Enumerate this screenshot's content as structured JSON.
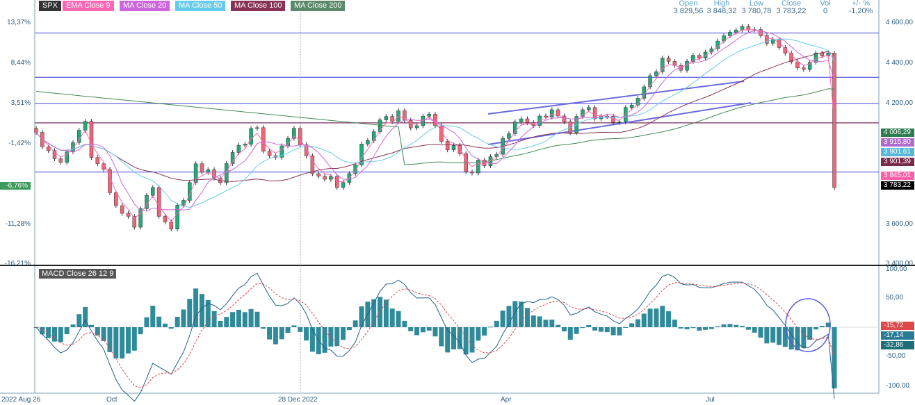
{
  "legend": {
    "symbol": "SPX",
    "items": [
      {
        "label": "EMA Close 9",
        "color": "#ff66b3"
      },
      {
        "label": "MA Close 20",
        "color": "#cc66dd"
      },
      {
        "label": "MA Close 50",
        "color": "#66ccee"
      },
      {
        "label": "MA Close 100",
        "color": "#883355"
      },
      {
        "label": "MA Close 200",
        "color": "#448855"
      }
    ]
  },
  "quote": {
    "open_label": "Open",
    "open": "3 829,56",
    "high_label": "High",
    "high": "3 848,32",
    "low_label": "Low",
    "low": "3 780,78",
    "close_label": "Close",
    "close": "3 783,22",
    "vol_label": "Vol",
    "vol": "0",
    "chg_label": "+/- %",
    "chg": "-1,20%"
  },
  "pct_labels": [
    "13,37%",
    "8,44%",
    "3,51%",
    "-1,42%",
    "-6,76%",
    "-11,28%",
    "-16,21%"
  ],
  "price_labels": [
    "4 600,00",
    "4 400,00",
    "4 200,00",
    "3 600,00",
    "3 400,00"
  ],
  "price_tags": [
    {
      "text": "4 006,29",
      "color": "#2e7d4f"
    },
    {
      "text": "3 915,80",
      "color": "#b06ad0"
    },
    {
      "text": "3 901,61",
      "color": "#56b8d8"
    },
    {
      "text": "3 901,39",
      "color": "#7a2a4a"
    },
    {
      "text": "3 845,01",
      "color": "#ff5fa8"
    },
    {
      "text": "3 783,22",
      "color": "#000000"
    }
  ],
  "macd": {
    "label": "MACD Close 26 12 9",
    "axis_labels": [
      "100,00",
      "50,00",
      "-50,00",
      "-100,00"
    ],
    "tags": [
      {
        "text": "-15,72",
        "color": "#e04848"
      },
      {
        "text": "-17,14",
        "color": "#2a7a96"
      },
      {
        "text": "-32,86",
        "color": "#1e6f7a"
      }
    ]
  },
  "x_labels": [
    "2022 Aug 26",
    "Oct",
    "28 Dec 2022",
    "Apr",
    "Jul"
  ],
  "chart_data": {
    "type": "candlestick",
    "x_range": [
      "2022-08-26",
      "2023-08-04"
    ],
    "y_range": [
      3400,
      4600
    ],
    "last": {
      "open": 3829.56,
      "high": 3848.32,
      "low": 3780.78,
      "close": 3783.22
    },
    "close_series": [
      4057,
      3985,
      3966,
      3926,
      3908,
      3960,
      4006,
      4067,
      4111,
      3932,
      3901,
      3873,
      3757,
      3693,
      3655,
      3640,
      3586,
      3678,
      3744,
      3783,
      3640,
      3612,
      3577,
      3695,
      3719,
      3808,
      3901,
      3859,
      3871,
      3830,
      3807,
      3902,
      3957,
      3993,
      3998,
      4076,
      4080,
      3963,
      3941,
      3933,
      3990,
      4027,
      4077,
      3996,
      3940,
      3852,
      3839,
      3824,
      3839,
      3783,
      3808,
      3852,
      3895,
      3999,
      4016,
      4060,
      4119,
      4136,
      4111,
      4164,
      4117,
      4079,
      4090,
      4137,
      4147,
      4090,
      4012,
      3970,
      3992,
      3951,
      3861,
      3855,
      3919,
      3891,
      3936,
      3948,
      4027,
      4050,
      4109,
      4124,
      4105,
      4091,
      4138,
      4133,
      4169,
      4138,
      4109,
      4055,
      4136,
      4169,
      4180,
      4124,
      4136,
      4137,
      4106,
      4109,
      4180,
      4192,
      4226,
      4283,
      4338,
      4358,
      4425,
      4409,
      4389,
      4365,
      4409,
      4439,
      4425,
      4455,
      4472,
      4510,
      4536,
      4554,
      4565,
      4582,
      4566,
      4567,
      4537,
      4499,
      4518,
      4478,
      4450,
      4407,
      4377,
      4369,
      4405,
      4451,
      4436,
      4450,
      3783
    ],
    "series": [
      {
        "name": "EMA Close 9",
        "last": 3845.01
      },
      {
        "name": "MA Close 20",
        "last": 3915.8
      },
      {
        "name": "MA Close 50",
        "last": 3901.61
      },
      {
        "name": "MA Close 100",
        "last": 3901.39
      },
      {
        "name": "MA Close 200",
        "last": 4006.29
      }
    ],
    "macd_last": {
      "signal": -15.72,
      "macd": -17.14,
      "histogram": -32.86
    },
    "macd_range": [
      -100,
      100
    ]
  }
}
